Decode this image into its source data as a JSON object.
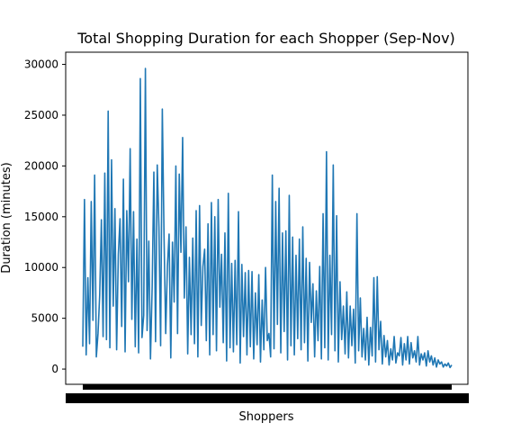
{
  "chart_data": {
    "type": "line",
    "title": "Total Shopping Duration for each Shopper (Sep-Nov)",
    "xlabel": "Shoppers",
    "ylabel": "Duration (minutes)",
    "ylim": [
      -1500,
      31200
    ],
    "yticks": [
      0,
      5000,
      10000,
      15000,
      20000,
      25000,
      30000
    ],
    "ytick_labels": [
      "0",
      "5000",
      "10000",
      "15000",
      "20000",
      "25000",
      "30000"
    ],
    "x_tick_labels_note": "tick labels overlap into an unreadable solid band",
    "grid": false,
    "legend": "none",
    "series_color": "#1f77b4",
    "series": [
      {
        "x_start": 0,
        "x_step": 1,
        "values": [
          2200,
          16700,
          1400,
          9000,
          2500,
          16500,
          4800,
          19100,
          1200,
          3500,
          7300,
          14700,
          3200,
          19300,
          2900,
          25400,
          2100,
          20600,
          6200,
          15800,
          1900,
          11300,
          14800,
          4200,
          18700,
          1700,
          15600,
          8600,
          21700,
          4900,
          15500,
          2200,
          12800,
          1600,
          28600,
          3100,
          5300,
          29600,
          3800,
          12600,
          1000,
          8100,
          19400,
          2700,
          20100,
          14000,
          2300,
          25600,
          13200,
          3500,
          10100,
          13300,
          1100,
          12500,
          6600,
          20000,
          3500,
          19200,
          11500,
          22800,
          7000,
          14000,
          1500,
          11000,
          3400,
          12900,
          2500,
          15600,
          1200,
          16100,
          4300,
          10100,
          11800,
          2800,
          14300,
          1400,
          16400,
          3400,
          15000,
          1800,
          16700,
          6100,
          11300,
          2600,
          13400,
          800,
          17300,
          2100,
          10400,
          1700,
          10700,
          2400,
          15500,
          600,
          10300,
          3200,
          9500,
          1400,
          9700,
          2200,
          9600,
          1000,
          7500,
          2400,
          9300,
          700,
          6800,
          1900,
          10000,
          2800,
          3500,
          1200,
          19100,
          2000,
          16500,
          4400,
          17800,
          1600,
          13400,
          3700,
          13600,
          900,
          17100,
          2300,
          13000,
          1400,
          11200,
          3000,
          12800,
          1900,
          14000,
          2600,
          10900,
          800,
          10500,
          4600,
          8400,
          1200,
          7700,
          2800,
          10100,
          1000,
          15300,
          2100,
          21400,
          900,
          11200,
          3400,
          20100,
          1800,
          15100,
          700,
          8600,
          2900,
          6200,
          1500,
          7600,
          1100,
          6200,
          2300,
          5900,
          600,
          15300,
          1800,
          7000,
          1200,
          4000,
          900,
          5100,
          400,
          4100,
          1300,
          9000,
          700,
          9100,
          1900,
          4700,
          500,
          3300,
          1200,
          2800,
          400,
          2000,
          900,
          3200,
          600,
          1600,
          1300,
          3100,
          400,
          2500,
          900,
          3200,
          500,
          2600,
          1100,
          1800,
          700,
          3200,
          400,
          1500,
          900,
          1600,
          300,
          1800,
          700,
          1300,
          400,
          1100,
          200,
          900,
          500,
          700,
          200,
          500,
          300,
          600,
          150,
          400
        ]
      }
    ]
  }
}
